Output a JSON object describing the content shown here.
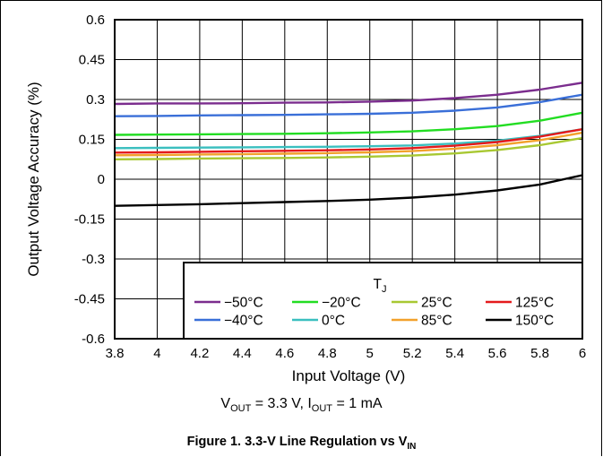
{
  "chart_data": {
    "type": "line",
    "xlabel": "Input Voltage (V)",
    "ylabel": "Output Voltage Accuracy (%)",
    "xlim": [
      3.8,
      6
    ],
    "ylim": [
      -0.6,
      0.6
    ],
    "xticks": [
      "3.8",
      "4",
      "4.2",
      "4.4",
      "4.6",
      "4.8",
      "5",
      "5.2",
      "5.4",
      "5.6",
      "5.8",
      "6"
    ],
    "yticks": [
      "0.6",
      "0.45",
      "0.3",
      "0.15",
      "0",
      "-0.15",
      "-0.3",
      "-0.45",
      "-0.6"
    ],
    "grid": true,
    "legend_title": "T",
    "legend_title_sub": "J",
    "legend_position": "bottom-right",
    "x": [
      3.8,
      4.0,
      4.2,
      4.4,
      4.6,
      4.8,
      5.0,
      5.2,
      5.4,
      5.6,
      5.8,
      6.0
    ],
    "series": [
      {
        "name": "−50°C",
        "color": "#7b2d8e",
        "values": [
          0.283,
          0.285,
          0.285,
          0.286,
          0.288,
          0.289,
          0.292,
          0.296,
          0.305,
          0.318,
          0.337,
          0.363
        ]
      },
      {
        "name": "−40°C",
        "color": "#3a6fd8",
        "values": [
          0.237,
          0.238,
          0.24,
          0.241,
          0.242,
          0.244,
          0.246,
          0.25,
          0.258,
          0.27,
          0.29,
          0.318
        ]
      },
      {
        "name": "−20°C",
        "color": "#22dd22",
        "values": [
          0.167,
          0.168,
          0.169,
          0.17,
          0.171,
          0.173,
          0.176,
          0.18,
          0.188,
          0.2,
          0.22,
          0.25
        ]
      },
      {
        "name": "0°C",
        "color": "#3bbfbf",
        "values": [
          0.117,
          0.118,
          0.119,
          0.12,
          0.121,
          0.122,
          0.124,
          0.127,
          0.134,
          0.145,
          0.163,
          0.188
        ]
      },
      {
        "name": "25°C",
        "color": "#a8c832",
        "values": [
          0.075,
          0.076,
          0.078,
          0.079,
          0.08,
          0.082,
          0.085,
          0.089,
          0.097,
          0.11,
          0.128,
          0.155
        ]
      },
      {
        "name": "85°C",
        "color": "#f2a12c",
        "values": [
          0.09,
          0.091,
          0.093,
          0.094,
          0.096,
          0.098,
          0.101,
          0.106,
          0.115,
          0.128,
          0.147,
          0.175
        ]
      },
      {
        "name": "125°C",
        "color": "#e41a1c",
        "values": [
          0.1,
          0.101,
          0.103,
          0.105,
          0.107,
          0.109,
          0.112,
          0.117,
          0.126,
          0.14,
          0.16,
          0.188
        ]
      },
      {
        "name": "150°C",
        "color": "#000000",
        "values": [
          -0.1,
          -0.097,
          -0.094,
          -0.09,
          -0.086,
          -0.082,
          -0.077,
          -0.069,
          -0.058,
          -0.042,
          -0.02,
          0.015
        ]
      }
    ],
    "conditions": {
      "v": "V",
      "v_sub": "OUT",
      "v_value": " = 3.3 V, ",
      "i": "I",
      "i_sub": "OUT",
      "i_value": " = 1 mA"
    },
    "caption": {
      "text": "Figure 1. 3.3-V Line Regulation vs V",
      "sub": "IN"
    }
  }
}
